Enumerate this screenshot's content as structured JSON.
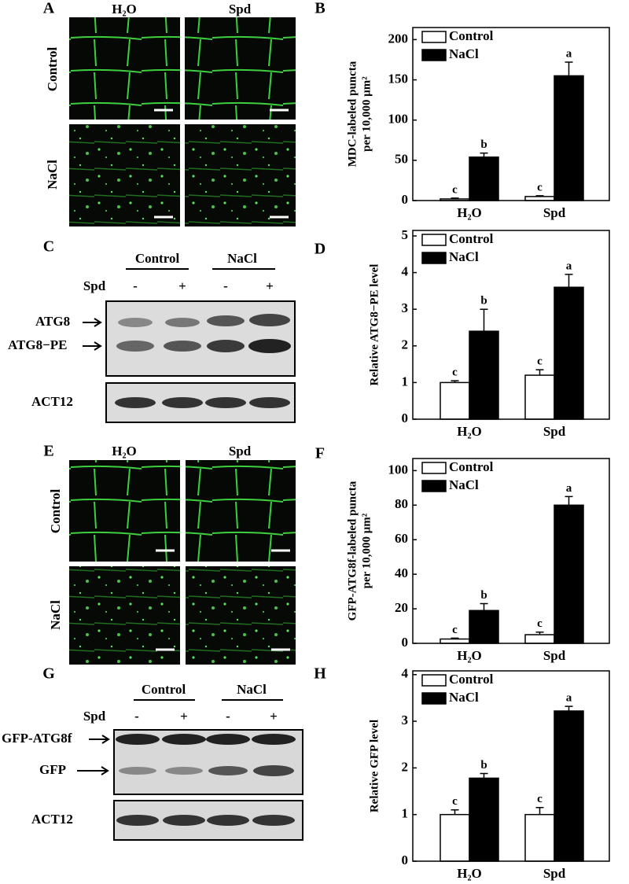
{
  "panels": {
    "A": {
      "label": "A",
      "columns": [
        "H₂O",
        "Spd"
      ],
      "rows": [
        "Control",
        "NaCl"
      ]
    },
    "C": {
      "label": "C",
      "groups": [
        "Control",
        "NaCl"
      ],
      "treatment": "Spd",
      "signs": [
        "-",
        "+",
        "-",
        "+"
      ],
      "bands": [
        "ATG8",
        "ATG8−PE"
      ],
      "loading": "ACT12"
    },
    "E": {
      "label": "E",
      "columns": [
        "H₂O",
        "Spd"
      ],
      "rows": [
        "Control",
        "NaCl"
      ]
    },
    "G": {
      "label": "G",
      "groups": [
        "Control",
        "NaCl"
      ],
      "treatment": "Spd",
      "signs": [
        "-",
        "+",
        "-",
        "+"
      ],
      "bands": [
        "GFP-ATG8f",
        "GFP"
      ],
      "loading": "ACT12"
    }
  },
  "chart_data": [
    {
      "type": "bar",
      "label": "B",
      "ylabel": [
        "MDC-labeled puncta",
        "per 10,000 μm²"
      ],
      "categories": [
        "H₂O",
        "Spd"
      ],
      "series": [
        {
          "name": "Control",
          "color": "#ffffff",
          "values": [
            2,
            5
          ],
          "errors": [
            1,
            1
          ],
          "letters": [
            "c",
            "c"
          ]
        },
        {
          "name": "NaCl",
          "color": "#000000",
          "values": [
            54,
            155
          ],
          "errors": [
            5,
            17
          ],
          "letters": [
            "b",
            "a"
          ]
        }
      ],
      "ylim": [
        0,
        215
      ],
      "yticks": [
        0,
        50,
        100,
        150,
        200
      ],
      "legend": "upper left"
    },
    {
      "type": "bar",
      "label": "D",
      "ylabel": [
        "Relative ATG8−PE level"
      ],
      "categories": [
        "H₂O",
        "Spd"
      ],
      "series": [
        {
          "name": "Control",
          "color": "#ffffff",
          "values": [
            1.0,
            1.2
          ],
          "errors": [
            0.05,
            0.15
          ],
          "letters": [
            "c",
            "c"
          ]
        },
        {
          "name": "NaCl",
          "color": "#000000",
          "values": [
            2.4,
            3.6
          ],
          "errors": [
            0.6,
            0.35
          ],
          "letters": [
            "b",
            "a"
          ]
        }
      ],
      "ylim": [
        0,
        5.15
      ],
      "yticks": [
        0,
        1,
        2,
        3,
        4,
        5
      ],
      "legend": "upper left"
    },
    {
      "type": "bar",
      "label": "F",
      "ylabel": [
        "GFP-ATG8f-labeled puncta",
        "per 10,000 μm²"
      ],
      "categories": [
        "H₂O",
        "Spd"
      ],
      "series": [
        {
          "name": "Control",
          "color": "#ffffff",
          "values": [
            2.5,
            5
          ],
          "errors": [
            0.5,
            1.5
          ],
          "letters": [
            "c",
            "c"
          ]
        },
        {
          "name": "NaCl",
          "color": "#000000",
          "values": [
            19,
            80
          ],
          "errors": [
            4,
            5
          ],
          "letters": [
            "b",
            "a"
          ]
        }
      ],
      "ylim": [
        0,
        107
      ],
      "yticks": [
        0,
        20,
        40,
        60,
        80,
        100
      ],
      "legend": "upper left"
    },
    {
      "type": "bar",
      "label": "H",
      "ylabel": [
        "Relative GFP level"
      ],
      "categories": [
        "H₂O",
        "Spd"
      ],
      "series": [
        {
          "name": "Control",
          "color": "#ffffff",
          "values": [
            1.0,
            1.0
          ],
          "errors": [
            0.1,
            0.15
          ],
          "letters": [
            "c",
            "c"
          ]
        },
        {
          "name": "NaCl",
          "color": "#000000",
          "values": [
            1.78,
            3.22
          ],
          "errors": [
            0.1,
            0.1
          ],
          "letters": [
            "b",
            "a"
          ]
        }
      ],
      "ylim": [
        0,
        4.08
      ],
      "yticks": [
        0,
        1,
        2,
        3,
        4
      ],
      "legend": "upper left"
    }
  ]
}
